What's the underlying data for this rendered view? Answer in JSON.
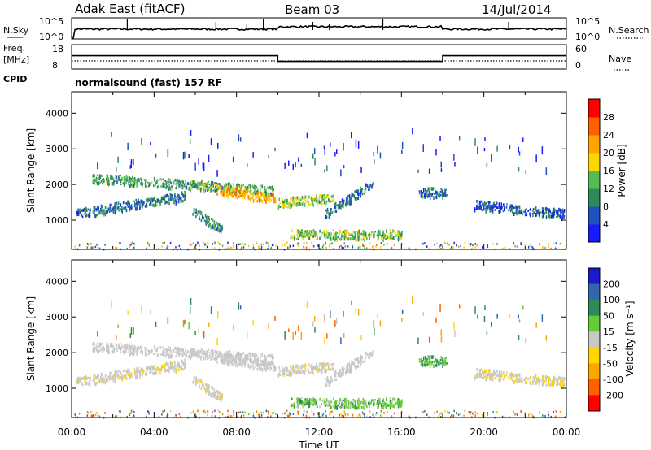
{
  "header": {
    "station": "Adak East (fitACF)",
    "beam": "Beam 03",
    "date": "14/Jul/2014"
  },
  "noise_panel": {
    "left_label": "N.Sky",
    "right_label": "N.Search",
    "left_ticks": [
      "10^5",
      "10^0"
    ],
    "right_ticks": [
      "10^5",
      "10^0"
    ]
  },
  "freq_panel": {
    "left_label_1": "Freq.",
    "left_label_2": "[MHz]",
    "left_ticks": [
      "18",
      "8"
    ],
    "right_label": "Nave",
    "right_ticks": [
      "60",
      "0"
    ],
    "cpid_label": "CPID",
    "cpid_text": "normalsound (fast) 157 RF"
  },
  "power_panel": {
    "ylabel": "Slant Range [km]",
    "yticks": [
      "1000",
      "2000",
      "3000",
      "4000"
    ],
    "colorbar_label": "Power [dB]",
    "colorbar_ticks": [
      "4",
      "8",
      "12",
      "16",
      "20",
      "24",
      "28"
    ],
    "colors": [
      "#1a1aff",
      "#2050c0",
      "#2e8b57",
      "#55bb55",
      "#ffd700",
      "#ffa500",
      "#ff6000",
      "#ff0000"
    ]
  },
  "velocity_panel": {
    "ylabel": "Slant Range [km]",
    "yticks": [
      "1000",
      "2000",
      "3000",
      "4000"
    ],
    "colorbar_label": "Velocity [m s⁻¹]",
    "colorbar_ticks": [
      "200",
      "100",
      "50",
      "15",
      "-15",
      "-50",
      "-100",
      "-200"
    ],
    "colors": [
      "#1a1acc",
      "#3366aa",
      "#2e8b57",
      "#66cc33",
      "#c8c8c8",
      "#ffd700",
      "#ffa500",
      "#ff6000",
      "#ff0000"
    ]
  },
  "x_axis": {
    "label": "Time UT",
    "ticks": [
      "00:00",
      "04:00",
      "08:00",
      "12:00",
      "16:00",
      "20:00",
      "00:00"
    ]
  },
  "chart_data": {
    "type": "heatmap",
    "title": "Adak East (fitACF) Beam 03 14/Jul/2014",
    "xlabel": "Time UT",
    "ylabel": "Slant Range [km]",
    "xlim_hours": [
      0,
      24
    ],
    "ylim_km": [
      180,
      4600
    ],
    "frequency_mhz": [
      {
        "from_hour": 0.0,
        "to_hour": 10.0,
        "value": 13.5
      },
      {
        "from_hour": 10.0,
        "to_hour": 18.0,
        "value": 11.0
      },
      {
        "from_hour": 18.0,
        "to_hour": 24.0,
        "value": 13.5
      }
    ],
    "scatter_bands": [
      {
        "start_hour": 1.0,
        "end_hour": 9.8,
        "range_start_km": 2200,
        "range_end_km": 1850,
        "power_db": 12,
        "velocity_ms": 0
      },
      {
        "start_hour": 7.0,
        "end_hour": 9.9,
        "range_start_km": 1900,
        "range_end_km": 1600,
        "power_db": 22,
        "velocity_ms": 0
      },
      {
        "start_hour": 0.2,
        "end_hour": 5.5,
        "range_start_km": 1200,
        "range_end_km": 1700,
        "power_db": 8,
        "velocity_ms": -5
      },
      {
        "start_hour": 5.8,
        "end_hour": 7.3,
        "range_start_km": 1300,
        "range_end_km": 750,
        "power_db": 10,
        "velocity_ms": -10
      },
      {
        "start_hour": 10.0,
        "end_hour": 12.7,
        "range_start_km": 1500,
        "range_end_km": 1650,
        "power_db": 16,
        "velocity_ms": -5
      },
      {
        "start_hour": 12.3,
        "end_hour": 14.6,
        "range_start_km": 1200,
        "range_end_km": 2050,
        "power_db": 8,
        "velocity_ms": 0
      },
      {
        "start_hour": 10.6,
        "end_hour": 16.0,
        "range_start_km": 620,
        "range_end_km": 620,
        "power_db": 14,
        "velocity_ms": 25
      },
      {
        "start_hour": 16.8,
        "end_hour": 18.2,
        "range_start_km": 1800,
        "range_end_km": 1800,
        "power_db": 8,
        "velocity_ms": 30
      },
      {
        "start_hour": 19.5,
        "end_hour": 23.9,
        "range_start_km": 1450,
        "range_end_km": 1200,
        "power_db": 6,
        "velocity_ms": -10
      }
    ]
  }
}
